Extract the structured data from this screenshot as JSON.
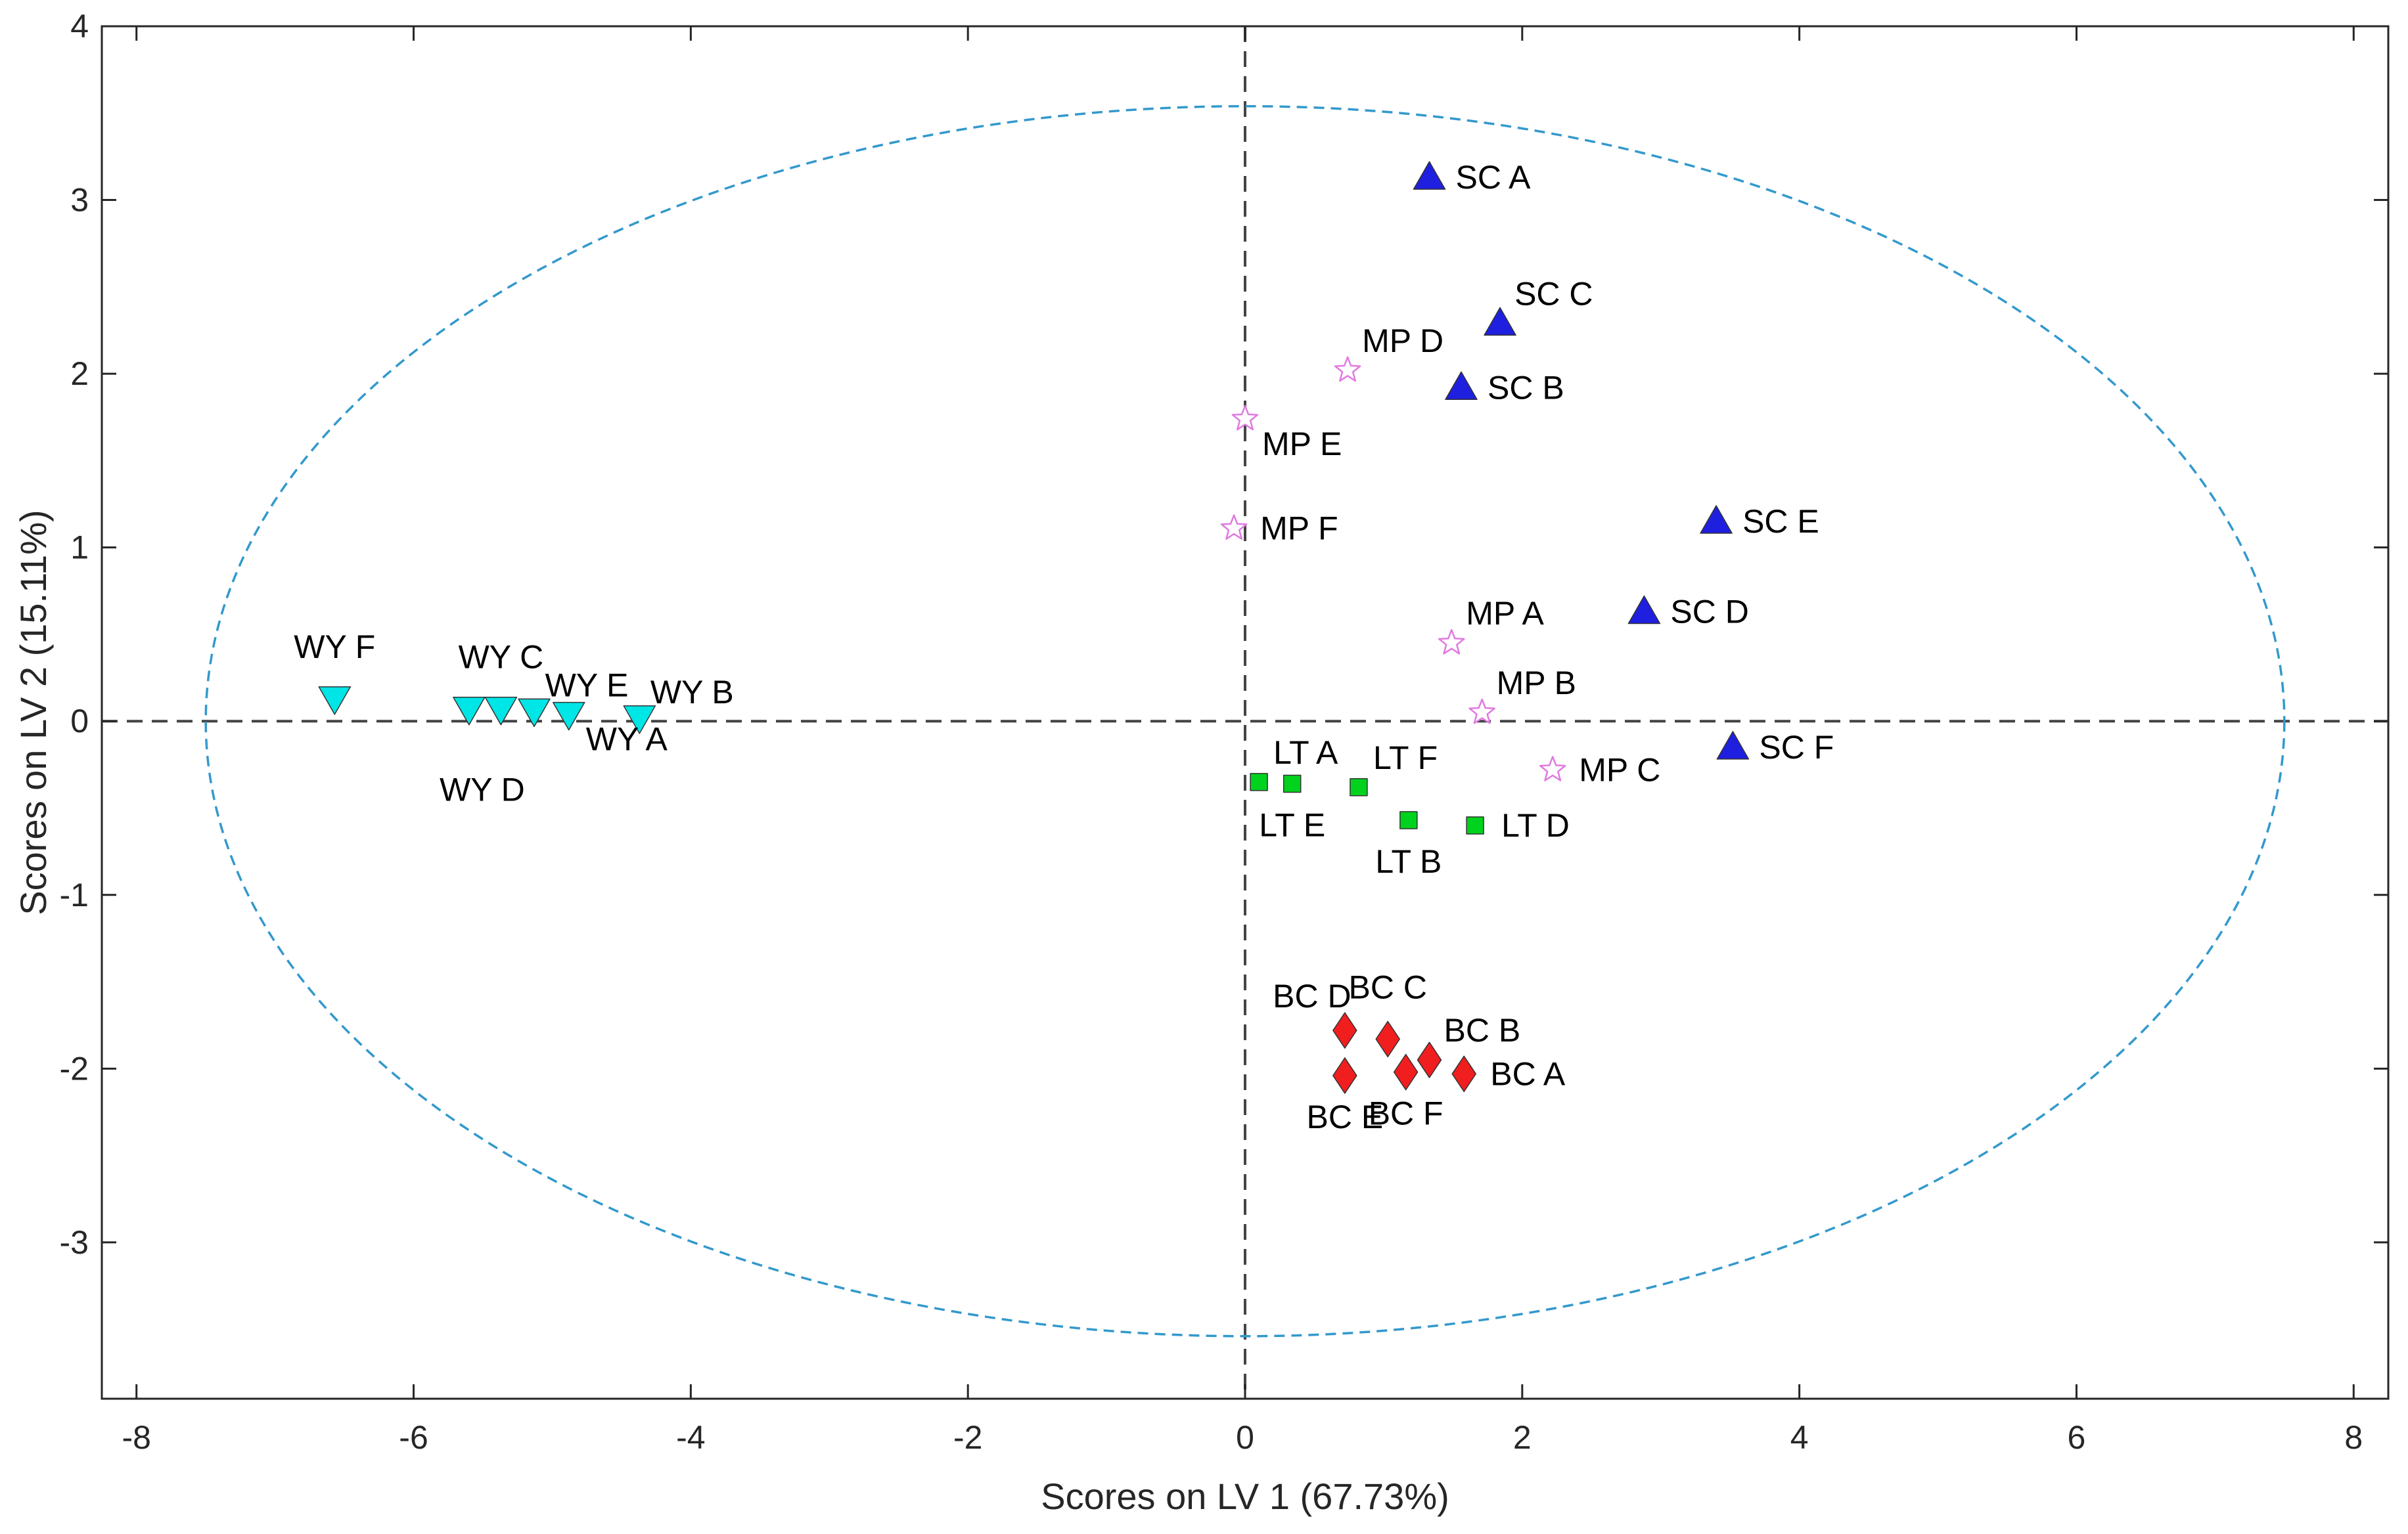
{
  "chart_data": {
    "type": "scatter",
    "title": "",
    "xlabel": "Scores on LV 1 (67.73%)",
    "ylabel": "Scores on LV 2 (15.11%)",
    "xlim": [
      -8.25,
      8.25
    ],
    "ylim": [
      -3.9,
      4
    ],
    "xticks": [
      -8,
      -6,
      -4,
      -2,
      0,
      2,
      4,
      6,
      8
    ],
    "yticks": [
      -3,
      -2,
      -1,
      0,
      1,
      2,
      3,
      4
    ],
    "grid": false,
    "reference_lines": {
      "x": 0,
      "y": 0,
      "style": "dashed",
      "color": "#444444"
    },
    "confidence_ellipse": {
      "cx": 0,
      "cy": 0,
      "rx": 7.5,
      "ry": 3.54,
      "color": "#3399cc",
      "style": "dashed"
    },
    "series": [
      {
        "name": "SC",
        "marker": "triangle-up",
        "color": "#1f1fe0",
        "points": [
          {
            "label": "SC A",
            "x": 1.33,
            "y": 3.13,
            "label_pos": "right"
          },
          {
            "label": "SC B",
            "x": 1.56,
            "y": 1.92,
            "label_pos": "right"
          },
          {
            "label": "SC C",
            "x": 1.84,
            "y": 2.29,
            "label_pos": "upper-right"
          },
          {
            "label": "SC D",
            "x": 2.88,
            "y": 0.63,
            "label_pos": "right"
          },
          {
            "label": "SC E",
            "x": 3.4,
            "y": 1.15,
            "label_pos": "right"
          },
          {
            "label": "SC F",
            "x": 3.52,
            "y": -0.15,
            "label_pos": "right"
          }
        ]
      },
      {
        "name": "MP",
        "marker": "star",
        "color": "#e07ae0",
        "points": [
          {
            "label": "MP A",
            "x": 1.49,
            "y": 0.45,
            "label_pos": "upper-right"
          },
          {
            "label": "MP B",
            "x": 1.71,
            "y": 0.05,
            "label_pos": "upper-right"
          },
          {
            "label": "MP C",
            "x": 2.22,
            "y": -0.28,
            "label_pos": "right"
          },
          {
            "label": "MP D",
            "x": 0.74,
            "y": 2.02,
            "label_pos": "upper-right"
          },
          {
            "label": "MP E",
            "x": 0.0,
            "y": 1.74,
            "label_pos": "lower-right"
          },
          {
            "label": "MP F",
            "x": -0.08,
            "y": 1.11,
            "label_pos": "right"
          }
        ]
      },
      {
        "name": "WY",
        "marker": "triangle-down",
        "color": "#00e5e5",
        "points": [
          {
            "label": "WY A",
            "x": -4.88,
            "y": 0.04,
            "label_pos": "lower-right"
          },
          {
            "label": "WY B",
            "x": -4.37,
            "y": 0.02,
            "label_pos": "far-upper-right"
          },
          {
            "label": "WY C",
            "x": -5.37,
            "y": 0.07,
            "label_pos": "upper"
          },
          {
            "label": "WY D",
            "x": -5.6,
            "y": 0.07,
            "label_pos": "far-lower"
          },
          {
            "label": "WY E",
            "x": -5.13,
            "y": 0.06,
            "label_pos": "far-upper-right"
          },
          {
            "label": "WY F",
            "x": -6.57,
            "y": 0.13,
            "label_pos": "upper"
          }
        ]
      },
      {
        "name": "LT",
        "marker": "square",
        "color": "#00d21e",
        "points": [
          {
            "label": "LT A",
            "x": 0.1,
            "y": -0.35,
            "label_pos": "upper-right"
          },
          {
            "label": "LT B",
            "x": 1.18,
            "y": -0.57,
            "label_pos": "lower"
          },
          {
            "label": "LT D",
            "x": 1.66,
            "y": -0.6,
            "label_pos": "right"
          },
          {
            "label": "LT E",
            "x": 0.34,
            "y": -0.36,
            "label_pos": "lower"
          },
          {
            "label": "LT F",
            "x": 0.82,
            "y": -0.38,
            "label_pos": "upper-right"
          }
        ]
      },
      {
        "name": "BC",
        "marker": "diamond",
        "color": "#f01e1e",
        "points": [
          {
            "label": "BC A",
            "x": 1.58,
            "y": -2.03,
            "label_pos": "right"
          },
          {
            "label": "BC B",
            "x": 1.33,
            "y": -1.95,
            "label_pos": "upper-right"
          },
          {
            "label": "BC C",
            "x": 1.03,
            "y": -1.83,
            "label_pos": "upper"
          },
          {
            "label": "BC D",
            "x": 0.72,
            "y": -1.78,
            "label_pos": "upper-left"
          },
          {
            "label": "BC E",
            "x": 0.72,
            "y": -2.04,
            "label_pos": "lower"
          },
          {
            "label": "BC F",
            "x": 1.16,
            "y": -2.02,
            "label_pos": "lower"
          }
        ]
      }
    ]
  }
}
